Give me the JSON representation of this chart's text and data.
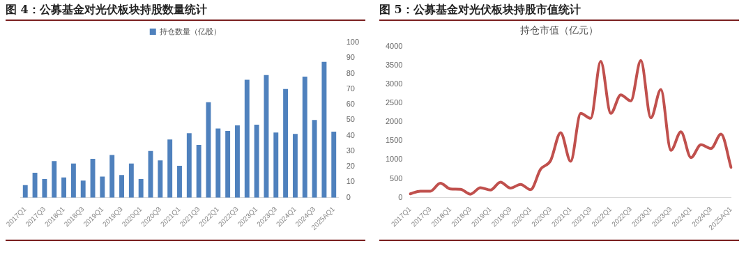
{
  "chart_data": [
    {
      "type": "bar",
      "title": "图 4：公募基金对光伏板块持股数量统计",
      "categories": [
        "2017Q1",
        null,
        "2017Q3",
        null,
        "2018Q1",
        null,
        "2018Q3",
        null,
        "2019Q1",
        null,
        "2019Q3",
        null,
        "2020Q1",
        null,
        "2020Q3",
        null,
        "2021Q1",
        null,
        "2021Q3",
        null,
        "2022Q1",
        null,
        "2022Q3",
        null,
        "2023Q1",
        null,
        "2023Q3",
        null,
        "2024Q1",
        null,
        "2024Q3",
        null,
        "2025AQ1"
      ],
      "series": [
        {
          "name": "持仓数量（亿股）",
          "color": "#4f81bd",
          "values": [
            8,
            16,
            12,
            23.5,
            13,
            22,
            11,
            25,
            13.5,
            27.5,
            14.5,
            22,
            12,
            30,
            24,
            37.5,
            20.5,
            41.5,
            34,
            61.5,
            44.5,
            43,
            46.5,
            76,
            47,
            79,
            42,
            70,
            41,
            78,
            50,
            87.5,
            42.5
          ]
        }
      ],
      "ylim": [
        0,
        100
      ],
      "yticks": [
        0,
        10,
        20,
        30,
        40,
        50,
        60,
        70,
        80,
        90,
        100
      ],
      "grid": false,
      "legend": "top"
    },
    {
      "type": "line",
      "title": "图 5：公募基金对光伏板块持股市值统计",
      "subtitle": "持仓市值（亿元）",
      "categories": [
        "2017Q1",
        null,
        "2017Q3",
        null,
        "2018Q1",
        null,
        "2018Q3",
        null,
        "2019Q1",
        null,
        "2019Q3",
        null,
        "2020Q1",
        null,
        "2020Q3",
        null,
        "2021Q1",
        null,
        "2021Q3",
        null,
        "2022Q1",
        null,
        "2022Q3",
        null,
        "2023Q1",
        null,
        "2023Q3",
        null,
        "2024Q1",
        null,
        "2024Q3",
        null,
        "2025AQ1"
      ],
      "series": [
        {
          "color": "#c0504d",
          "values": [
            100,
            170,
            170,
            380,
            230,
            220,
            90,
            260,
            200,
            410,
            250,
            350,
            210,
            750,
            980,
            1720,
            960,
            2230,
            2100,
            3610,
            2230,
            2720,
            2560,
            3630,
            2110,
            2860,
            1250,
            1740,
            1060,
            1400,
            1300,
            1680,
            800
          ]
        }
      ],
      "ylim": [
        0,
        4000
      ],
      "yticks": [
        0,
        500,
        1000,
        1500,
        2000,
        2500,
        3000,
        3500,
        4000
      ],
      "grid": false,
      "legend": false,
      "marker": "none",
      "line_style": "solid"
    }
  ]
}
